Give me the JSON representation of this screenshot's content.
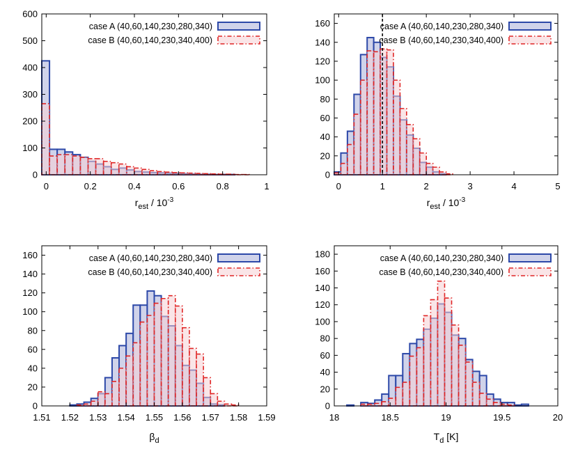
{
  "colors": {
    "case_a_stroke": "#2c48a8",
    "case_a_fill": "#c8cbe6",
    "case_b_stroke": "#e02525",
    "case_b_fill": "#f6cfd3",
    "axis": "#000000"
  },
  "chart_data": [
    {
      "id": "top-left",
      "type": "bar",
      "subtype": "histogram",
      "title": "",
      "xlabel_main": "r",
      "xlabel_sub": "est",
      "xlabel_rest": " / 10",
      "xlabel_sup": "-3",
      "ylabel": "",
      "xlim": [
        -0.02,
        1.0
      ],
      "ylim": [
        0,
        600
      ],
      "xticks": [
        0,
        0.2,
        0.4,
        0.6,
        0.8,
        1
      ],
      "xtick_labels": [
        "0",
        "0.2",
        "0.4",
        "0.6",
        "0.8",
        "1"
      ],
      "yticks": [
        0,
        100,
        200,
        300,
        400,
        500,
        600
      ],
      "ytick_labels": [
        "0",
        "100",
        "200",
        "300",
        "400",
        "500",
        "600"
      ],
      "grid": false,
      "legend_position": "top-right",
      "vline": null,
      "bin_start": -0.02,
      "bin_width": 0.035,
      "series": [
        {
          "name": "case A (40,60,140,230,280,340)",
          "values": [
            425,
            95,
            95,
            85,
            75,
            65,
            50,
            40,
            30,
            20,
            25,
            18,
            12,
            10,
            8,
            7,
            6,
            5,
            4,
            3,
            2,
            2,
            1,
            1,
            1,
            0,
            0,
            0
          ]
        },
        {
          "name": "case B (40,60,140,230,340,400)",
          "values": [
            265,
            70,
            75,
            75,
            70,
            65,
            60,
            60,
            50,
            45,
            40,
            30,
            25,
            20,
            15,
            12,
            10,
            8,
            7,
            6,
            5,
            4,
            3,
            2,
            2,
            1,
            1,
            0
          ]
        }
      ]
    },
    {
      "id": "top-right",
      "type": "bar",
      "subtype": "histogram",
      "title": "",
      "xlabel_main": "r",
      "xlabel_sub": "est",
      "xlabel_rest": " / 10",
      "xlabel_sup": "-3",
      "ylabel": "",
      "xlim": [
        -0.1,
        5.0
      ],
      "ylim": [
        0,
        170
      ],
      "xticks": [
        0,
        1,
        2,
        3,
        4,
        5
      ],
      "xtick_labels": [
        "0",
        "1",
        "2",
        "3",
        "4",
        "5"
      ],
      "yticks": [
        0,
        20,
        40,
        60,
        80,
        100,
        120,
        140,
        160
      ],
      "ytick_labels": [
        "0",
        "20",
        "40",
        "60",
        "80",
        "100",
        "120",
        "140",
        "160"
      ],
      "grid": false,
      "legend_position": "top-right",
      "vline": 1.0,
      "bin_start": -0.1,
      "bin_width": 0.15,
      "series": [
        {
          "name": "case A (40,60,140,230,280,340)",
          "values": [
            3,
            23,
            46,
            85,
            127,
            145,
            140,
            124,
            114,
            83,
            58,
            42,
            28,
            13,
            8,
            3,
            1,
            0,
            0,
            0
          ]
        },
        {
          "name": "case B (40,60,140,230,340,400)",
          "values": [
            2,
            12,
            32,
            64,
            100,
            131,
            130,
            133,
            132,
            100,
            70,
            53,
            38,
            23,
            12,
            8,
            3,
            1,
            0,
            0
          ]
        }
      ]
    },
    {
      "id": "bottom-left",
      "type": "bar",
      "subtype": "histogram",
      "title": "",
      "xlabel_main": "β",
      "xlabel_sub": "d",
      "xlabel_rest": "",
      "xlabel_sup": "",
      "ylabel": "",
      "xlim": [
        1.51,
        1.59
      ],
      "ylim": [
        0,
        170
      ],
      "xticks": [
        1.51,
        1.52,
        1.53,
        1.54,
        1.55,
        1.56,
        1.57,
        1.58,
        1.59
      ],
      "xtick_labels": [
        "1.51",
        "1.52",
        "1.53",
        "1.54",
        "1.55",
        "1.56",
        "1.57",
        "1.58",
        "1.59"
      ],
      "yticks": [
        0,
        20,
        40,
        60,
        80,
        100,
        120,
        140,
        160
      ],
      "ytick_labels": [
        "0",
        "20",
        "40",
        "60",
        "80",
        "100",
        "120",
        "140",
        "160"
      ],
      "grid": false,
      "legend_position": "top-right",
      "vline": null,
      "bin_start": 1.52,
      "bin_width": 0.0025,
      "series": [
        {
          "name": "case A (40,60,140,230,280,340)",
          "values": [
            1,
            2,
            4,
            8,
            13,
            30,
            51,
            64,
            77,
            107,
            107,
            122,
            117,
            95,
            85,
            64,
            43,
            38,
            24,
            9,
            2,
            1,
            0,
            0
          ]
        },
        {
          "name": "case B (40,60,140,230,340,400)",
          "values": [
            0,
            1,
            2,
            5,
            15,
            13,
            26,
            40,
            53,
            67,
            89,
            96,
            109,
            114,
            117,
            106,
            83,
            61,
            55,
            30,
            13,
            5,
            2,
            1
          ]
        }
      ]
    },
    {
      "id": "bottom-right",
      "type": "bar",
      "subtype": "histogram",
      "title": "",
      "xlabel_main": "T",
      "xlabel_sub": "d",
      "xlabel_rest": " [K]",
      "xlabel_sup": "",
      "ylabel": "",
      "xlim": [
        18.0,
        20.0
      ],
      "ylim": [
        0,
        190
      ],
      "xticks": [
        18,
        18.5,
        19,
        19.5,
        20
      ],
      "xtick_labels": [
        "18",
        "18.5",
        "19",
        "19.5",
        "20"
      ],
      "yticks": [
        0,
        20,
        40,
        60,
        80,
        100,
        120,
        140,
        160,
        180
      ],
      "ytick_labels": [
        "0",
        "20",
        "40",
        "60",
        "80",
        "100",
        "120",
        "140",
        "160",
        "180"
      ],
      "grid": false,
      "legend_position": "top-right",
      "vline": null,
      "bin_start": 18.05,
      "bin_width": 0.0625,
      "series": [
        {
          "name": "case A (40,60,140,230,280,340)",
          "values": [
            0,
            1,
            0,
            4,
            3,
            7,
            14,
            36,
            36,
            62,
            74,
            79,
            91,
            104,
            121,
            111,
            84,
            80,
            55,
            41,
            36,
            14,
            8,
            4,
            4,
            1,
            2,
            0
          ]
        },
        {
          "name": "case B (40,60,140,230,340,400)",
          "values": [
            0,
            0,
            0,
            2,
            2,
            3,
            5,
            9,
            22,
            28,
            59,
            69,
            107,
            126,
            148,
            128,
            96,
            72,
            52,
            28,
            15,
            8,
            4,
            2,
            1,
            0,
            0,
            0
          ]
        }
      ]
    }
  ]
}
